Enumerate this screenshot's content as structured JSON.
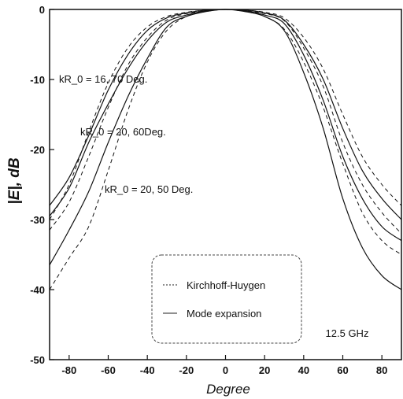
{
  "chart_data": {
    "type": "line",
    "title": "",
    "xlabel": "Degree",
    "ylabel": "|E|, dB",
    "xlim": [
      -90,
      90
    ],
    "ylim": [
      -50,
      0
    ],
    "x_ticks": [
      -80,
      -60,
      -40,
      -20,
      0,
      20,
      40,
      60,
      80
    ],
    "x_tick_labels": [
      "-80",
      "-60",
      "-40",
      "-20",
      "0",
      "20",
      "40",
      "60",
      "80"
    ],
    "y_ticks": [
      0,
      -10,
      -20,
      -30,
      -40,
      -50
    ],
    "y_tick_labels": [
      "0",
      "-10",
      "-20",
      "-30",
      "-40",
      "-50"
    ],
    "grid": false,
    "annotations": [
      "kR_0 = 16, 70 Deg.",
      "kR_0 = 20, 60Deg.",
      "kR_0 = 20, 50 Deg.",
      "12.5 GHz"
    ],
    "legend": {
      "placement": "bottom-center",
      "entries": [
        {
          "label": "Kirchhoff-Huygen",
          "style": "dashed"
        },
        {
          "label": "Mode expansion",
          "style": "solid"
        }
      ]
    },
    "series": [
      {
        "style": "solid",
        "x": [
          -90,
          -80,
          -70,
          -60,
          -50,
          -40,
          -30,
          -20,
          -10,
          0,
          10,
          20,
          30,
          40,
          50,
          60,
          70,
          80,
          90
        ],
        "y": [
          -36.5,
          -31.5,
          -26,
          -19,
          -12.5,
          -7,
          -2.5,
          -1,
          -0.3,
          0,
          -0.3,
          -1,
          -3,
          -9,
          -17,
          -27,
          -34,
          -38,
          -40
        ]
      },
      {
        "style": "dashed",
        "x": [
          -90,
          -80,
          -70,
          -60,
          -50,
          -40,
          -30,
          -20,
          -10,
          0,
          10,
          20,
          30,
          40,
          50,
          60,
          70,
          80,
          90
        ],
        "y": [
          -40,
          -35.5,
          -31,
          -23,
          -14.5,
          -7.5,
          -3,
          -1,
          -0.3,
          0,
          -0.3,
          -1,
          -2.8,
          -7.5,
          -14,
          -22,
          -29,
          -33,
          -35
        ]
      },
      {
        "style": "solid",
        "x": [
          -90,
          -80,
          -70,
          -60,
          -50,
          -40,
          -30,
          -20,
          -10,
          0,
          10,
          20,
          30,
          40,
          50,
          60,
          70,
          80,
          90
        ],
        "y": [
          -29.5,
          -25.5,
          -19,
          -13.5,
          -8.5,
          -4.5,
          -1.8,
          -0.8,
          -0.2,
          0,
          -0.2,
          -0.8,
          -2,
          -6.5,
          -13,
          -21,
          -27,
          -31,
          -33
        ]
      },
      {
        "style": "dashed",
        "x": [
          -90,
          -80,
          -70,
          -60,
          -50,
          -40,
          -30,
          -20,
          -10,
          0,
          10,
          20,
          30,
          40,
          50,
          60,
          70,
          80,
          90
        ],
        "y": [
          -31.5,
          -27.5,
          -21,
          -14,
          -8,
          -4,
          -1.5,
          -0.6,
          -0.2,
          0,
          -0.2,
          -0.6,
          -1.6,
          -5.5,
          -11,
          -19,
          -25,
          -29,
          -32
        ]
      },
      {
        "style": "solid",
        "x": [
          -90,
          -80,
          -70,
          -60,
          -50,
          -40,
          -30,
          -20,
          -10,
          0,
          10,
          20,
          30,
          40,
          50,
          60,
          70,
          80,
          90
        ],
        "y": [
          -28,
          -24,
          -18,
          -11.5,
          -6.5,
          -3,
          -1.2,
          -0.5,
          -0.1,
          0,
          -0.1,
          -0.5,
          -1.5,
          -5,
          -10,
          -17,
          -23,
          -27,
          -30
        ]
      },
      {
        "style": "dashed",
        "x": [
          -90,
          -80,
          -70,
          -60,
          -50,
          -40,
          -30,
          -20,
          -10,
          0,
          10,
          20,
          30,
          40,
          50,
          60,
          70,
          80,
          90
        ],
        "y": [
          -30,
          -25,
          -17.5,
          -10.5,
          -5.5,
          -2.5,
          -1,
          -0.4,
          -0.1,
          0,
          -0.1,
          -0.4,
          -1.2,
          -4,
          -8.5,
          -15,
          -21,
          -25,
          -28
        ]
      }
    ]
  }
}
